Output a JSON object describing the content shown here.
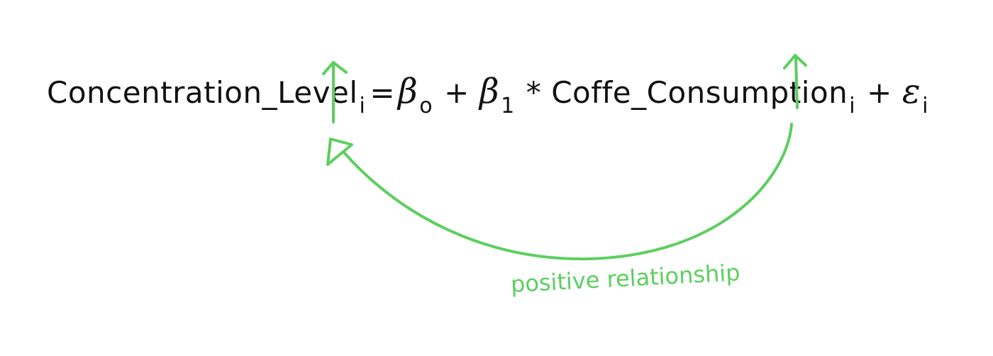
{
  "equation": {
    "lhs_name": "Concentration_Level",
    "lhs_sub": "i",
    "equals": "=",
    "beta0": "β",
    "beta0_sub": "o",
    "plus1": "+",
    "beta1": "β",
    "beta1_sub": "1",
    "times": "*",
    "x_name": "Coffe_Consumption",
    "x_sub": "i",
    "plus2": "+",
    "epsilon": "ε",
    "epsilon_sub": "i"
  },
  "annotation": {
    "label": "positive relationship",
    "color": "#5ccf5e"
  }
}
